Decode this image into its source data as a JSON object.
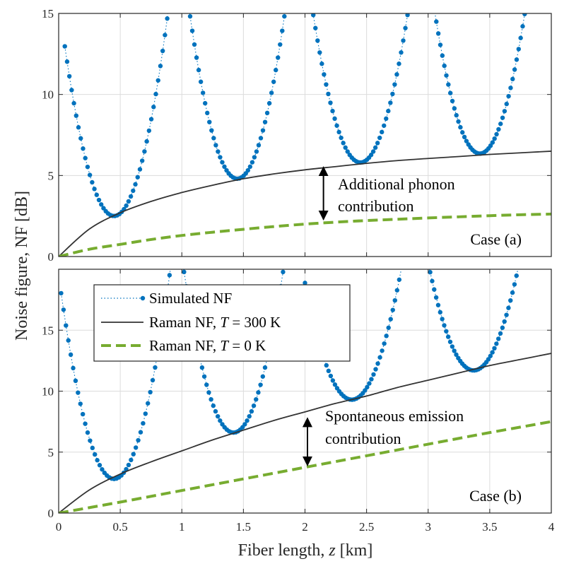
{
  "chart_data": [
    {
      "type": "line",
      "panel": "top",
      "case_label": "Case (a)",
      "xlim": [
        0,
        4
      ],
      "ylim": [
        0,
        15
      ],
      "xticks": [
        0,
        0.5,
        1,
        1.5,
        2,
        2.5,
        3,
        3.5,
        4
      ],
      "yticks": [
        0,
        5,
        10,
        15
      ],
      "annotation": {
        "lines": [
          "Additional phonon",
          "contribution"
        ],
        "arrow_x": 2.15,
        "arrow_from": 2.2,
        "arrow_to": 5.6
      },
      "series": [
        {
          "name": "Simulated NF",
          "color": "#0072BD",
          "style": "dotted-markers",
          "segments": [
            {
              "x_min": 0.05,
              "x_max": 0.9,
              "x_center": 0.45,
              "min_value": 2.5
            },
            {
              "x_min": 1.05,
              "x_max": 1.85,
              "x_center": 1.45,
              "min_value": 4.8
            },
            {
              "x_min": 2.05,
              "x_max": 2.85,
              "x_center": 2.45,
              "min_value": 5.8
            },
            {
              "x_min": 3.05,
              "x_max": 3.8,
              "x_center": 3.42,
              "min_value": 6.35
            }
          ]
        },
        {
          "name": "Raman NF, T = 300 K",
          "color": "#333333",
          "style": "solid",
          "x": [
            0,
            0.25,
            0.5,
            0.75,
            1,
            1.25,
            1.5,
            1.75,
            2,
            2.25,
            2.5,
            2.75,
            3,
            3.25,
            3.5,
            3.75,
            4
          ],
          "y": [
            0,
            1.7,
            2.7,
            3.4,
            3.95,
            4.4,
            4.8,
            5.1,
            5.35,
            5.55,
            5.75,
            5.92,
            6.05,
            6.17,
            6.3,
            6.4,
            6.5
          ]
        },
        {
          "name": "Raman NF, T = 0 K",
          "color": "#77AC30",
          "style": "dashed",
          "x": [
            0,
            0.25,
            0.5,
            0.75,
            1,
            1.25,
            1.5,
            1.75,
            2,
            2.25,
            2.5,
            2.75,
            3,
            3.25,
            3.5,
            3.75,
            4
          ],
          "y": [
            0,
            0.45,
            0.75,
            1.05,
            1.3,
            1.5,
            1.68,
            1.85,
            2.0,
            2.12,
            2.22,
            2.3,
            2.38,
            2.45,
            2.52,
            2.58,
            2.62
          ]
        }
      ]
    },
    {
      "type": "line",
      "panel": "bottom",
      "case_label": "Case (b)",
      "xlim": [
        0,
        4
      ],
      "ylim": [
        0,
        20
      ],
      "xticks": [
        0,
        0.5,
        1,
        1.5,
        2,
        2.5,
        3,
        3.5,
        4
      ],
      "yticks": [
        0,
        5,
        10,
        15
      ],
      "annotation": {
        "lines": [
          "Spontaneous emission",
          "contribution"
        ],
        "arrow_x": 2.02,
        "arrow_from": 3.8,
        "arrow_to": 7.9
      },
      "series": [
        {
          "name": "Simulated NF",
          "color": "#0072BD",
          "style": "dotted-markers",
          "segments": [
            {
              "x_min": 0.02,
              "x_max": 0.92,
              "x_center": 0.45,
              "min_value": 2.8
            },
            {
              "x_min": 1.0,
              "x_max": 1.84,
              "x_center": 1.42,
              "min_value": 6.6
            },
            {
              "x_min": 2.0,
              "x_max": 2.8,
              "x_center": 2.38,
              "min_value": 9.3
            },
            {
              "x_min": 3.0,
              "x_max": 3.75,
              "x_center": 3.37,
              "min_value": 11.7
            }
          ]
        },
        {
          "name": "Raman NF, T = 300 K",
          "color": "#333333",
          "style": "solid",
          "x": [
            0,
            0.25,
            0.5,
            0.75,
            1,
            1.25,
            1.5,
            1.75,
            2,
            2.25,
            2.5,
            2.75,
            3,
            3.25,
            3.5,
            3.75,
            4
          ],
          "y": [
            0,
            1.9,
            3.2,
            4.2,
            5.1,
            6.0,
            6.8,
            7.6,
            8.3,
            9.0,
            9.6,
            10.3,
            10.9,
            11.5,
            12.1,
            12.6,
            13.1
          ]
        },
        {
          "name": "Raman NF, T = 0 K",
          "color": "#77AC30",
          "style": "dashed",
          "x": [
            0,
            0.5,
            1,
            1.5,
            2,
            2.5,
            3,
            3.5,
            4
          ],
          "y": [
            0,
            0.9,
            1.85,
            2.8,
            3.75,
            4.7,
            5.65,
            6.6,
            7.5
          ]
        }
      ]
    }
  ],
  "axes": {
    "xlabel_text": "Fiber length, ",
    "xlabel_var": "z",
    "xlabel_unit": " [km]",
    "ylabel": "Noise figure, NF [dB]"
  },
  "legend": {
    "position": "upper-left of bottom panel",
    "entries": [
      {
        "text": "Simulated NF",
        "var": "",
        "suffix": ""
      },
      {
        "text": "Raman NF, ",
        "var": "T",
        "suffix": " = 300 K"
      },
      {
        "text": "Raman NF, ",
        "var": "T",
        "suffix": " = 0 K"
      }
    ]
  }
}
